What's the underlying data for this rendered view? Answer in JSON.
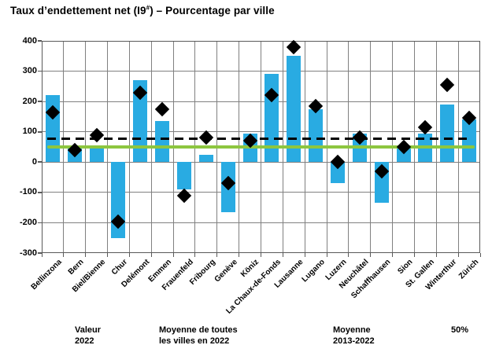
{
  "title": {
    "prefix": "Taux d’endettement net (I9",
    "superscript": "#",
    "suffix": ") – Pourcentage par ville"
  },
  "colors": {
    "bar": "#29ABE2",
    "diamond": "#000000",
    "dashed_line": "#000000",
    "green_line": "#8DC63F",
    "gridline": "#808080",
    "axis": "#595959",
    "text": "#000000"
  },
  "chart_data": {
    "type": "bar",
    "title": "Taux d’endettement net (I9#) – Pourcentage par ville",
    "categories": [
      "Bellinzona",
      "Bern",
      "Biel/Bienne",
      "Chur",
      "Delémont",
      "Emmen",
      "Frauenfeld",
      "Fribourg",
      "Genève",
      "Köniz",
      "La Chaux-de-Fonds",
      "Lausanne",
      "Lugano",
      "Luzern",
      "Neuchâtel",
      "Schaffhausen",
      "Sion",
      "St. Gallen",
      "Winterthur",
      "Zürich"
    ],
    "series": [
      {
        "name": "Valeur 2022",
        "type": "bar",
        "values": [
          220,
          50,
          50,
          -250,
          270,
          135,
          -90,
          25,
          -165,
          95,
          290,
          350,
          175,
          -70,
          95,
          -135,
          55,
          95,
          190,
          140
        ]
      },
      {
        "name": "Moyenne 2013-2022",
        "type": "scatter",
        "marker": "diamond",
        "values": [
          165,
          40,
          90,
          -195,
          230,
          175,
          -110,
          80,
          -70,
          70,
          220,
          380,
          185,
          0,
          80,
          -30,
          50,
          115,
          255,
          145
        ]
      }
    ],
    "reference_lines": [
      {
        "name": "Moyenne de toutes les villes en 2022",
        "value": 78,
        "style": "dashed-black"
      },
      {
        "name": "50%",
        "value": 50,
        "style": "solid-green"
      }
    ],
    "ylabel": "",
    "xlabel": "",
    "ylim": [
      -300,
      400
    ],
    "yticks": [
      400,
      300,
      200,
      100,
      0,
      -100,
      -200,
      -300
    ],
    "grid": true,
    "legend_position": "bottom"
  },
  "legend": {
    "items": [
      {
        "swatch": "bar-swatch",
        "line1": "Valeur",
        "line2": "2022"
      },
      {
        "swatch": "dashed-line-swatch",
        "line1": "Moyenne de toutes",
        "line2": "les villes en 2022"
      },
      {
        "swatch": "diamond-swatch",
        "line1": "Moyenne",
        "line2": "2013-2022"
      },
      {
        "swatch": "green-line-swatch",
        "line1": "50%",
        "line2": ""
      }
    ]
  }
}
